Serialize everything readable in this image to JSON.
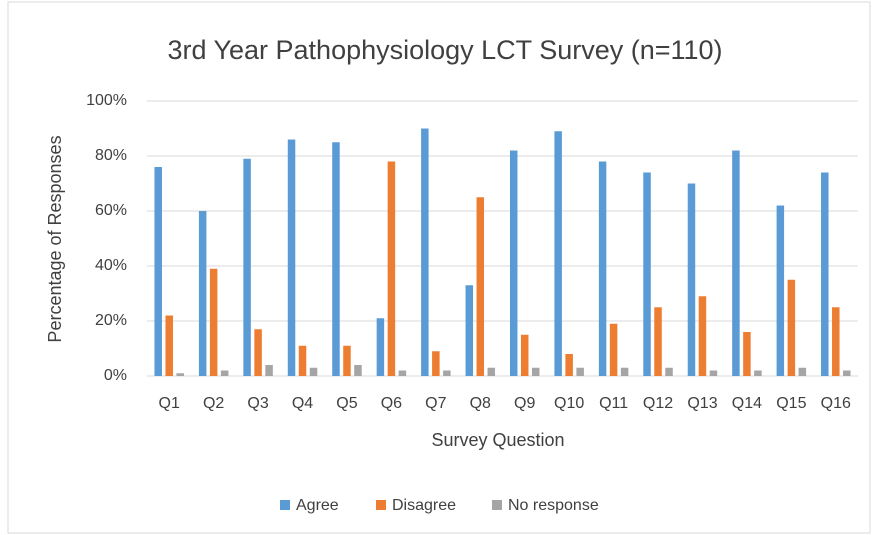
{
  "chart_data": {
    "type": "bar",
    "title": "3rd Year Pathophysiology LCT Survey (n=110)",
    "x_label": "Survey Question",
    "y_label": "Percentage of Responses",
    "categories": [
      "Q1",
      "Q2",
      "Q3",
      "Q4",
      "Q5",
      "Q6",
      "Q7",
      "Q8",
      "Q9",
      "Q10",
      "Q11",
      "Q12",
      "Q13",
      "Q14",
      "Q15",
      "Q16"
    ],
    "series": [
      {
        "name": "Agree",
        "color": "#5b9bd5",
        "values": [
          76,
          60,
          79,
          86,
          85,
          21,
          90,
          33,
          82,
          89,
          78,
          74,
          70,
          82,
          62,
          74
        ]
      },
      {
        "name": "Disagree",
        "color": "#ed7d31",
        "values": [
          22,
          39,
          17,
          11,
          11,
          78,
          9,
          65,
          15,
          8,
          19,
          25,
          29,
          16,
          35,
          25
        ]
      },
      {
        "name": "No response",
        "color": "#a5a5a5",
        "values": [
          1,
          2,
          4,
          3,
          4,
          2,
          2,
          3,
          3,
          3,
          3,
          3,
          2,
          2,
          3,
          2
        ]
      }
    ],
    "ylim": [
      0,
      100
    ],
    "yticks": [
      {
        "value": 0,
        "label": "0%"
      },
      {
        "value": 20,
        "label": "20%"
      },
      {
        "value": 40,
        "label": "40%"
      },
      {
        "value": 60,
        "label": "60%"
      },
      {
        "value": 80,
        "label": "80%"
      },
      {
        "value": 100,
        "label": "100%"
      }
    ],
    "grid": true,
    "legend": "bottom"
  }
}
